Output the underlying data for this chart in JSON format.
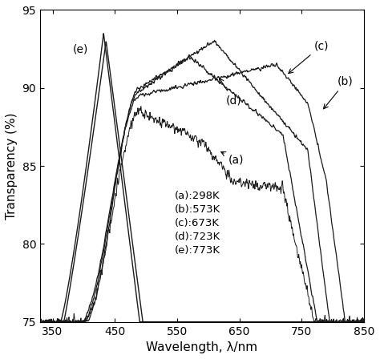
{
  "xlabel": "Wavelength, λ/nm",
  "ylabel": "Transparency (%)",
  "xlim": [
    330,
    850
  ],
  "ylim": [
    75,
    95
  ],
  "xticks": [
    350,
    450,
    550,
    650,
    750,
    850
  ],
  "yticks": [
    75,
    80,
    85,
    90,
    95
  ],
  "background_color": "#ffffff"
}
